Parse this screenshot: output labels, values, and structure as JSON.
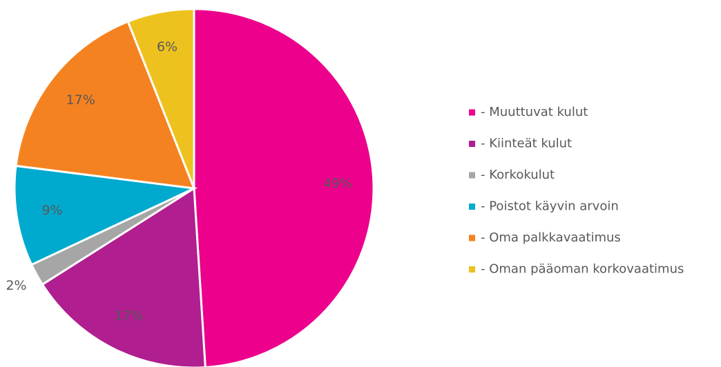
{
  "chart_data": {
    "type": "pie",
    "categories": [
      "- Muuttuvat kulut",
      "- Kiinteät kulut",
      "- Korkokulut",
      "- Poistot käyvin arvoin",
      "- Oma palkkavaatimus",
      "- Oman pääoman korkovaatimus"
    ],
    "values": [
      49,
      17,
      2,
      9,
      17,
      6
    ],
    "value_labels": [
      "49%",
      "17%",
      "2%",
      "9%",
      "17%",
      "6%"
    ],
    "colors": [
      "#ec008c",
      "#b01e8f",
      "#a6a6a6",
      "#00a9ce",
      "#f58220",
      "#eec21e"
    ],
    "legend": "right"
  }
}
